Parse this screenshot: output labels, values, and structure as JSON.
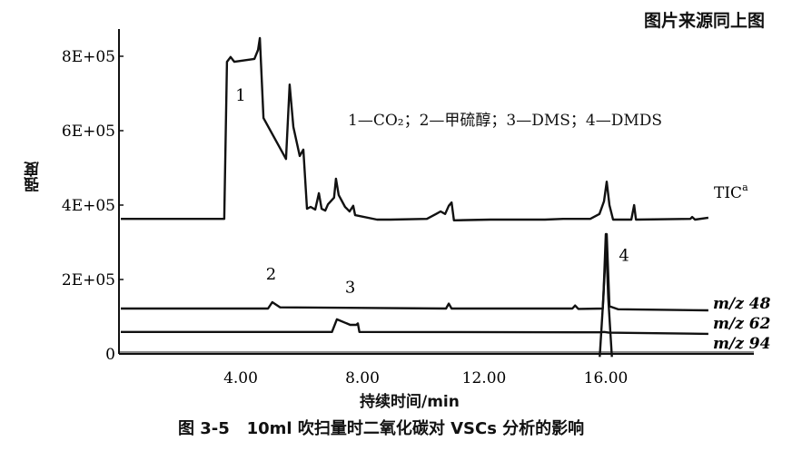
{
  "source_note": "图片来源同上图",
  "caption": "图 3-5   10ml 吹扫量时二氧化碳对 VSCs 分析的影响",
  "chart_data": {
    "type": "line",
    "title": "",
    "xlabel": "持续时间/min",
    "ylabel": "强度",
    "xlim": [
      0,
      21
    ],
    "ylim": [
      0,
      900000
    ],
    "x_ticks": [
      4,
      8,
      12,
      16
    ],
    "x_tick_labels": [
      "4.00",
      "8.00",
      "12.00",
      "16.00"
    ],
    "y_ticks": [
      0,
      200000,
      400000,
      600000,
      800000
    ],
    "y_tick_labels": [
      "0",
      "2E+05",
      "4E+05",
      "6E+05",
      "8E+05"
    ],
    "grid": false,
    "legend_text": "1—CO₂；2—甲硫醇；3—DMS；4—DMDS",
    "peak_labels": [
      {
        "label": "1",
        "x": 4.0,
        "y": 680000
      },
      {
        "label": "2",
        "x": 5.0,
        "y": 200000
      },
      {
        "label": "3",
        "x": 7.6,
        "y": 165000
      },
      {
        "label": "4",
        "x": 16.6,
        "y": 250000
      }
    ],
    "series": [
      {
        "name": "TIC",
        "name_sup": "a",
        "x": [
          0.06,
          3.46,
          3.55,
          3.67,
          3.79,
          4.45,
          4.57,
          4.63,
          4.75,
          5.49,
          5.61,
          5.73,
          5.94,
          6.06,
          6.18,
          6.3,
          6.45,
          6.57,
          6.66,
          6.78,
          6.87,
          7.07,
          7.13,
          7.22,
          7.43,
          7.58,
          7.7,
          7.76,
          8.48,
          8.93,
          10.12,
          10.42,
          10.57,
          10.72,
          10.84,
          10.93,
          11.01,
          12.21,
          14.0,
          14.6,
          15.49,
          15.79,
          15.94,
          16.03,
          16.12,
          16.24,
          16.84,
          16.93,
          16.99,
          18.78,
          18.84,
          18.93,
          19.37
        ],
        "y": [
          363000,
          363000,
          785000,
          798000,
          785000,
          793000,
          817000,
          849000,
          634000,
          524000,
          724000,
          610000,
          532000,
          549000,
          390000,
          395000,
          388000,
          432000,
          390000,
          385000,
          402000,
          420000,
          471000,
          427000,
          395000,
          383000,
          398000,
          373000,
          361000,
          361000,
          363000,
          376000,
          383000,
          376000,
          398000,
          407000,
          359000,
          361000,
          361000,
          363000,
          363000,
          376000,
          410000,
          463000,
          400000,
          361000,
          361000,
          400000,
          361000,
          363000,
          368000,
          361000,
          366000
        ]
      },
      {
        "name": "m/z 48",
        "x": [
          0.06,
          4.9,
          5.04,
          5.3,
          10.75,
          10.84,
          10.93,
          14.9,
          14.99,
          15.1,
          15.9,
          16.03,
          16.12,
          16.4,
          19.37
        ],
        "y": [
          122000,
          122000,
          139000,
          125000,
          122000,
          135000,
          122000,
          122000,
          130000,
          121000,
          122000,
          322000,
          128000,
          120000,
          117000
        ]
      },
      {
        "name": "m/z 62",
        "x": [
          0.06,
          7.0,
          7.16,
          7.6,
          7.8,
          7.85,
          7.9,
          15.8,
          15.95,
          16.1,
          19.37
        ],
        "y": [
          59000,
          59000,
          93000,
          78000,
          78000,
          82000,
          59000,
          58000,
          59000,
          57000,
          54000
        ]
      },
      {
        "name": "m/z 94",
        "x": [
          15.8,
          15.92,
          16.0,
          16.08,
          16.2
        ],
        "y": [
          -8000,
          150000,
          322000,
          150000,
          -8000
        ]
      }
    ],
    "series_label_text": [
      "m/z 48",
      "m/z 62",
      "m/z 94"
    ]
  }
}
